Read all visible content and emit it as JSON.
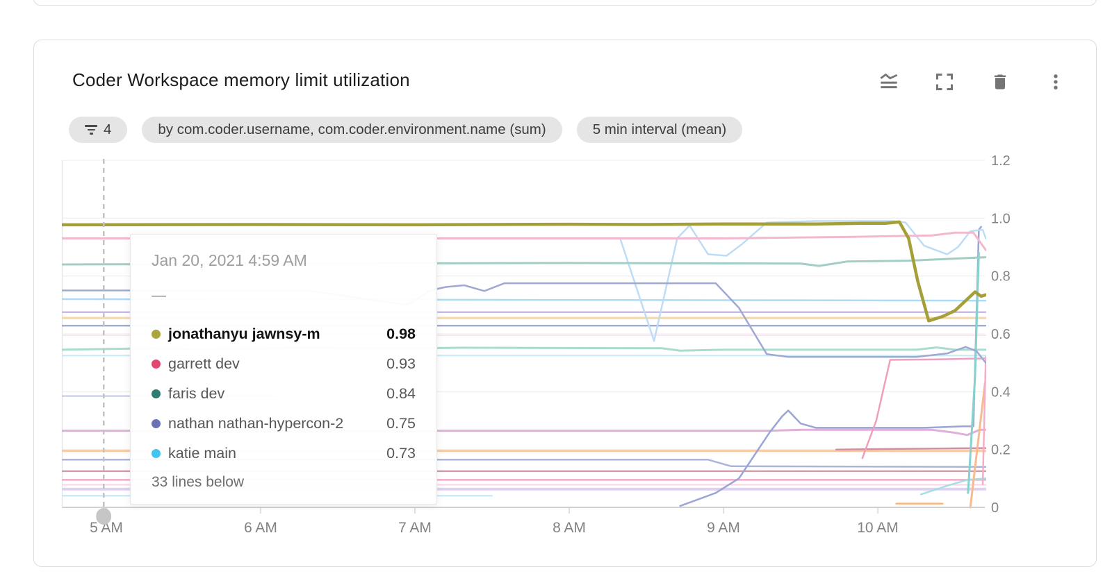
{
  "header": {
    "title": "Coder Workspace memory limit utilization"
  },
  "toolbar": {
    "icons": [
      "chart-type",
      "fullscreen",
      "delete",
      "more-options"
    ]
  },
  "filters": {
    "filter_count": "4",
    "group_by": "by com.coder.username, com.coder.environment.name (sum)",
    "interval": "5 min interval (mean)"
  },
  "tooltip": {
    "timestamp": "Jan 20, 2021 4:59 AM",
    "dash": "—",
    "rows": [
      {
        "label": "jonathanyu jawnsy-m",
        "value": "0.98",
        "color": "#aaa43e",
        "bold": true
      },
      {
        "label": "garrett dev",
        "value": "0.93",
        "color": "#e2476f",
        "bold": false
      },
      {
        "label": "faris dev",
        "value": "0.84",
        "color": "#2e7d6e",
        "bold": false
      },
      {
        "label": "nathan nathan-hypercon-2",
        "value": "0.75",
        "color": "#6a72b5",
        "bold": false
      },
      {
        "label": "katie main",
        "value": "0.73",
        "color": "#40c4f0",
        "bold": false
      }
    ],
    "footer": "33 lines below"
  },
  "chart_data": {
    "type": "line",
    "title": "Coder Workspace memory limit utilization",
    "x_tick_labels": [
      "5 AM",
      "6 AM",
      "7 AM",
      "8 AM",
      "9 AM",
      "10 AM"
    ],
    "x_tick_hours": [
      5,
      6,
      7,
      8,
      9,
      10
    ],
    "x_domain_hours": [
      4.715,
      10.7
    ],
    "y_tick_labels": [
      "1.2",
      "1.0",
      "0.8",
      "0.6",
      "0.4",
      "0.2",
      "0"
    ],
    "y_tick_values": [
      1.2,
      1.0,
      0.8,
      0.6,
      0.4,
      0.2,
      0
    ],
    "ylim": [
      0,
      1.2
    ],
    "grid": "horizontal",
    "legend": "tooltip-only",
    "hover_time_hours": 4.983,
    "series": [
      {
        "name": "unlabeled-1",
        "color": "#f9e3ef",
        "width": 2,
        "points": [
          [
            4.715,
            0.595
          ],
          [
            10.7,
            0.595
          ]
        ]
      },
      {
        "name": "unlabeled-2",
        "color": "#fbd5e6",
        "width": 2,
        "points": [
          [
            4.715,
            0.078
          ],
          [
            10.7,
            0.078
          ]
        ]
      },
      {
        "name": "unlabeled-3",
        "color": "#c9eaf6",
        "width": 2.2,
        "points": [
          [
            4.715,
            0.525
          ],
          [
            10.7,
            0.525
          ]
        ]
      },
      {
        "name": "unlabeled-4",
        "color": "#c3e9f7",
        "width": 2.2,
        "points": [
          [
            4.715,
            0.04
          ],
          [
            7.5,
            0.04
          ]
        ]
      },
      {
        "name": "unlabeled-5",
        "color": "#ded2f1",
        "width": 4,
        "points": [
          [
            4.715,
            0.063
          ],
          [
            10.7,
            0.063
          ]
        ]
      },
      {
        "name": "unlabeled-6",
        "color": "#bcc7e4",
        "width": 2,
        "points": [
          [
            4.715,
            0.385
          ],
          [
            6.1,
            0.385
          ]
        ]
      },
      {
        "name": "unlabeled-7",
        "color": "#dfb0d9",
        "width": 3,
        "points": [
          [
            4.715,
            0.265
          ],
          [
            9.3,
            0.265
          ],
          [
            9.5,
            0.268
          ],
          [
            10.35,
            0.268
          ],
          [
            10.5,
            0.258
          ],
          [
            10.58,
            0.25
          ],
          [
            10.66,
            0.268
          ],
          [
            10.7,
            0.268
          ]
        ]
      },
      {
        "name": "unlabeled-8",
        "color": "#f9c9a0",
        "width": 3,
        "points": [
          [
            4.715,
            0.195
          ],
          [
            10.7,
            0.195
          ]
        ]
      },
      {
        "name": "unlabeled-9",
        "color": "#d59aad",
        "width": 2.5,
        "points": [
          [
            4.715,
            0.125
          ],
          [
            10.7,
            0.125
          ]
        ]
      },
      {
        "name": "unlabeled-10",
        "color": "#f3aac9",
        "width": 2.5,
        "points": [
          [
            4.715,
            0.095
          ],
          [
            10.7,
            0.095
          ]
        ]
      },
      {
        "name": "unlabeled-11",
        "color": "#aab4dd",
        "width": 2.5,
        "points": [
          [
            4.715,
            0.165
          ],
          [
            8.9,
            0.165
          ],
          [
            9.05,
            0.142
          ],
          [
            10.7,
            0.14
          ]
        ]
      },
      {
        "name": "unlabeled-12",
        "color": "#f8d6a4",
        "width": 3,
        "points": [
          [
            4.715,
            0.655
          ],
          [
            10.7,
            0.655
          ]
        ]
      },
      {
        "name": "unlabeled-13",
        "color": "#93a0c6",
        "width": 2.2,
        "points": [
          [
            4.715,
            0.628
          ],
          [
            10.7,
            0.628
          ]
        ]
      },
      {
        "name": "unlabeled-14",
        "color": "#cbbce6",
        "width": 2.5,
        "points": [
          [
            4.715,
            0.675
          ],
          [
            10.7,
            0.675
          ]
        ]
      },
      {
        "name": "unlabeled-15",
        "color": "#a9dccf",
        "width": 3,
        "points": [
          [
            4.715,
            0.545
          ],
          [
            5.3,
            0.55
          ],
          [
            5.6,
            0.545
          ],
          [
            6.2,
            0.552
          ],
          [
            7.0,
            0.55
          ],
          [
            7.3,
            0.552
          ],
          [
            8.6,
            0.55
          ],
          [
            8.72,
            0.542
          ],
          [
            9.0,
            0.545
          ],
          [
            10.25,
            0.545
          ],
          [
            10.38,
            0.553
          ],
          [
            10.5,
            0.545
          ],
          [
            10.7,
            0.545
          ]
        ]
      },
      {
        "name": "katie-main",
        "color": "#a8dcf7",
        "width": 2.5,
        "points": [
          [
            4.715,
            0.72
          ],
          [
            10.7,
            0.715
          ]
        ]
      },
      {
        "name": "unlabeled-16",
        "color": "#cf8fa5",
        "width": 2.5,
        "points": [
          [
            9.73,
            0.2
          ],
          [
            10.7,
            0.205
          ]
        ]
      },
      {
        "name": "unlabeled-17",
        "color": "#f6b67f",
        "width": 2.5,
        "points": [
          [
            10.12,
            0.013
          ],
          [
            10.42,
            0.013
          ]
        ]
      },
      {
        "name": "unlabeled-18",
        "color": "#a5dfe3",
        "width": 2.5,
        "points": [
          [
            10.28,
            0.045
          ],
          [
            10.45,
            0.075
          ],
          [
            10.58,
            0.095
          ],
          [
            10.7,
            0.1
          ]
        ]
      },
      {
        "name": "unlabeled-19",
        "color": "#9aa5d6",
        "width": 2.5,
        "points": [
          [
            8.72,
            0.005
          ],
          [
            8.95,
            0.05
          ],
          [
            9.1,
            0.1
          ],
          [
            9.3,
            0.26
          ],
          [
            9.38,
            0.315
          ],
          [
            9.42,
            0.335
          ],
          [
            9.5,
            0.29
          ],
          [
            9.6,
            0.275
          ],
          [
            10.3,
            0.275
          ],
          [
            10.55,
            0.28
          ],
          [
            10.62,
            0.28
          ],
          [
            10.655,
            0.96
          ],
          [
            10.67,
            0.97
          ]
        ]
      },
      {
        "name": "unlabeled-20",
        "color": "#ef9fbe",
        "width": 2.5,
        "points": [
          [
            9.9,
            0.17
          ],
          [
            9.99,
            0.3
          ],
          [
            10.08,
            0.51
          ],
          [
            10.4,
            0.512
          ],
          [
            10.7,
            0.515
          ]
        ]
      },
      {
        "name": "unlabeled-21",
        "color": "#86d2cc",
        "width": 3,
        "points": [
          [
            10.585,
            0.05
          ],
          [
            10.63,
            0.45
          ],
          [
            10.655,
            0.88
          ]
        ]
      },
      {
        "name": "unlabeled-22",
        "color": "#f8bb90",
        "width": 3,
        "points": [
          [
            10.6,
            0.0
          ],
          [
            10.695,
            0.43
          ]
        ]
      },
      {
        "name": "unlabeled-23",
        "color": "#f2afc6",
        "width": 2.5,
        "points": [
          [
            10.68,
            0.08
          ],
          [
            10.7,
            0.52
          ]
        ]
      },
      {
        "name": "unlabeled-24",
        "color": "#bddcf6",
        "width": 2.5,
        "points": [
          [
            8.2,
            0.93
          ],
          [
            8.33,
            0.93
          ],
          [
            8.55,
            0.575
          ],
          [
            8.7,
            0.93
          ],
          [
            8.78,
            0.975
          ],
          [
            8.9,
            0.875
          ],
          [
            9.02,
            0.87
          ],
          [
            9.12,
            0.91
          ],
          [
            9.28,
            0.985
          ],
          [
            9.6,
            0.99
          ],
          [
            10.1,
            0.99
          ],
          [
            10.18,
            0.985
          ],
          [
            10.3,
            0.905
          ],
          [
            10.45,
            0.875
          ],
          [
            10.52,
            0.9
          ],
          [
            10.6,
            0.955
          ],
          [
            10.68,
            0.96
          ],
          [
            10.7,
            0.93
          ]
        ]
      },
      {
        "name": "nathan-nathan-hypercon-2",
        "color": "#9fa9d2",
        "width": 2.5,
        "points": [
          [
            4.715,
            0.75
          ],
          [
            6.3,
            0.75
          ],
          [
            6.95,
            0.7
          ],
          [
            7.1,
            0.75
          ],
          [
            7.2,
            0.762
          ],
          [
            7.32,
            0.768
          ],
          [
            7.45,
            0.748
          ],
          [
            7.58,
            0.775
          ],
          [
            8.95,
            0.775
          ],
          [
            9.1,
            0.69
          ],
          [
            9.28,
            0.53
          ],
          [
            9.42,
            0.52
          ],
          [
            10.25,
            0.52
          ],
          [
            10.45,
            0.532
          ],
          [
            10.57,
            0.555
          ],
          [
            10.64,
            0.54
          ],
          [
            10.7,
            0.5
          ]
        ]
      },
      {
        "name": "faris-dev",
        "color": "#a3cec5",
        "width": 3,
        "points": [
          [
            4.715,
            0.84
          ],
          [
            6.5,
            0.843
          ],
          [
            8.0,
            0.845
          ],
          [
            9.5,
            0.843
          ],
          [
            9.62,
            0.835
          ],
          [
            9.8,
            0.85
          ],
          [
            10.2,
            0.853
          ],
          [
            10.7,
            0.865
          ]
        ]
      },
      {
        "name": "garrett-dev",
        "color": "#f2b8cd",
        "width": 3,
        "points": [
          [
            4.715,
            0.93
          ],
          [
            9.0,
            0.93
          ],
          [
            9.8,
            0.935
          ],
          [
            10.35,
            0.94
          ],
          [
            10.5,
            0.95
          ],
          [
            10.62,
            0.95
          ],
          [
            10.7,
            0.89
          ]
        ]
      },
      {
        "name": "jonathanyu-jawnsy-m",
        "color": "#a49f39",
        "width": 4.5,
        "points": [
          [
            4.715,
            0.977
          ],
          [
            6.0,
            0.978
          ],
          [
            7.0,
            0.977
          ],
          [
            8.0,
            0.979
          ],
          [
            8.5,
            0.978
          ],
          [
            9.0,
            0.98
          ],
          [
            9.6,
            0.98
          ],
          [
            9.9,
            0.982
          ],
          [
            10.05,
            0.982
          ],
          [
            10.14,
            0.987
          ],
          [
            10.2,
            0.93
          ],
          [
            10.26,
            0.78
          ],
          [
            10.33,
            0.645
          ],
          [
            10.42,
            0.66
          ],
          [
            10.5,
            0.68
          ],
          [
            10.58,
            0.72
          ],
          [
            10.63,
            0.745
          ],
          [
            10.67,
            0.73
          ],
          [
            10.7,
            0.735
          ]
        ]
      }
    ]
  }
}
